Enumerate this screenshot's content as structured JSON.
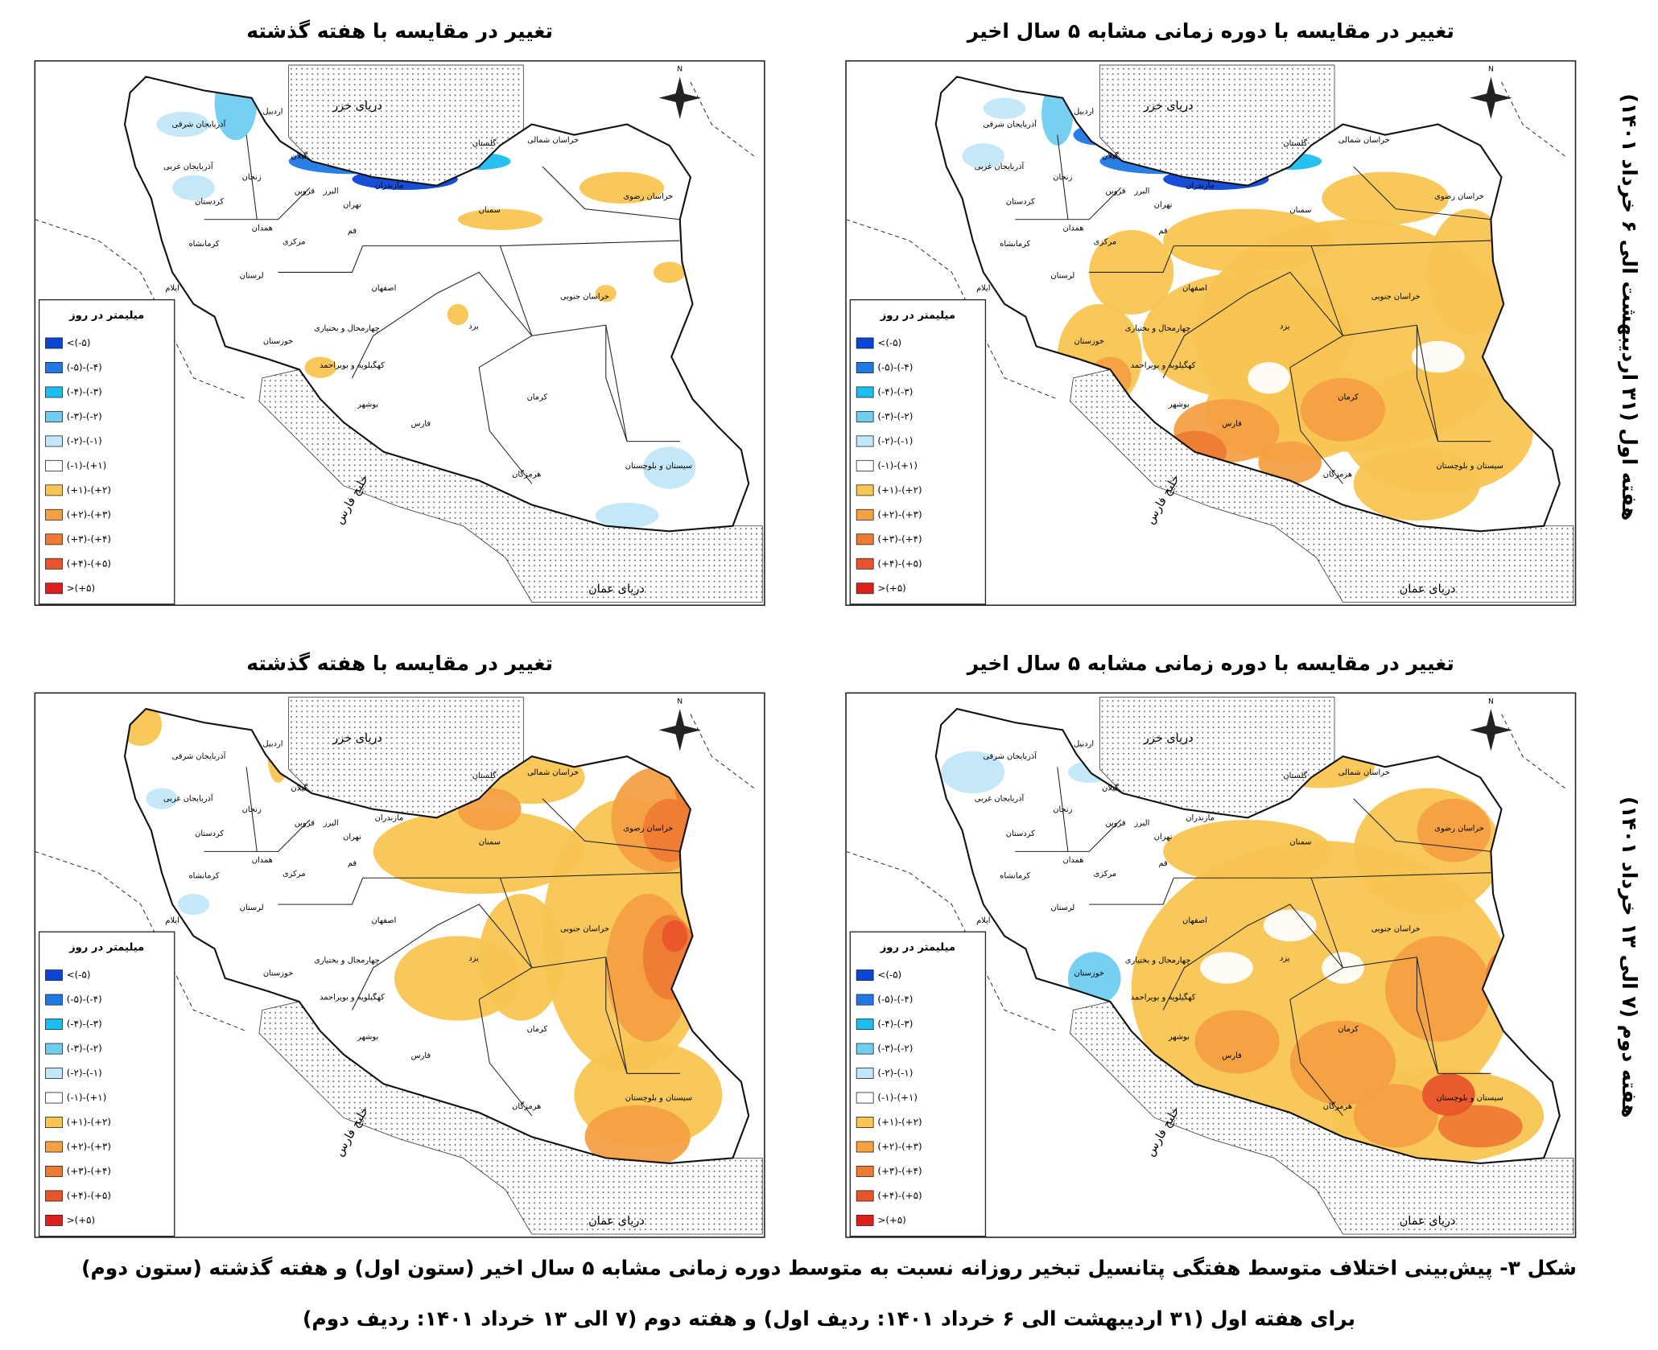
{
  "figure": {
    "column_titles": [
      "تغییر در مقایسه با دوره زمانی مشابه ۵ سال اخیر",
      "تغییر در مقایسه با هفته گذشته"
    ],
    "row_labels": [
      "هفته اول (۳۱ اردیبهشت الی ۶ خرداد ۱۴۰۱)",
      "هفته دوم (۷ الی ۱۳ خرداد ۱۴۰۱)"
    ]
  },
  "legend": {
    "title": "میلیمتر در روز",
    "classes": [
      {
        "label": "<(-۵)",
        "color": "#0a45d6"
      },
      {
        "label": "(-۵)-(-۴)",
        "color": "#1f78e3"
      },
      {
        "label": "(-۴)-(-۳)",
        "color": "#1cbdf0"
      },
      {
        "label": "(-۳)-(-۲)",
        "color": "#6fcdf0"
      },
      {
        "label": "(-۲)-(-۱)",
        "color": "#c2e7f8"
      },
      {
        "label": "(-۱)-(+۱)",
        "color": "#ffffff"
      },
      {
        "label": "(+۱)-(+۲)",
        "color": "#f8c552"
      },
      {
        "label": "(+۲)-(+۳)",
        "color": "#f4a043"
      },
      {
        "label": "(+۳)-(+۴)",
        "color": "#ee7b34"
      },
      {
        "label": "(+۴)-(+۵)",
        "color": "#e8552b"
      },
      {
        "label": ">(+۵)",
        "color": "#df1f1c"
      }
    ]
  },
  "map_labels": {
    "compass": "N",
    "seas": [
      "دریای خزر",
      "دریای عمان",
      "خلیج فارس"
    ],
    "provinces": [
      "اردبیل",
      "آذربایجان شرقی",
      "آذربایجان غربی",
      "زنجان",
      "گیلان",
      "مازندران",
      "گلستان",
      "خراسان شمالی",
      "خراسان رضوی",
      "سمنان",
      "تهران",
      "البرز",
      "قزوین",
      "قم",
      "مرکزی",
      "همدان",
      "کردستان",
      "کرمانشاه",
      "لرستان",
      "ایلام",
      "اصفهان",
      "خراسان جنوبی",
      "یزد",
      "چهارمحال و بختیاری",
      "خوزستان",
      "کهگیلویه و بویراحمد",
      "فارس",
      "کرمان",
      "بوشهر",
      "هرمزگان",
      "سیستان و بلوچستان"
    ]
  },
  "caption": [
    "شکل ۳- پیش‌بینی اختلاف متوسط هفتگی پتانسیل تبخیر روزانه نسبت به متوسط دوره زمانی مشابه ۵ سال اخیر (ستون اول) و هفته گذشته (ستون دوم)",
    "برای هفته اول (۳۱ اردیبهشت الی ۶ خرداد ۱۴۰۱: ردیف اول) و هفته دوم (۷ الی ۱۳ خرداد ۱۴۰۱: ردیف دوم)"
  ]
}
